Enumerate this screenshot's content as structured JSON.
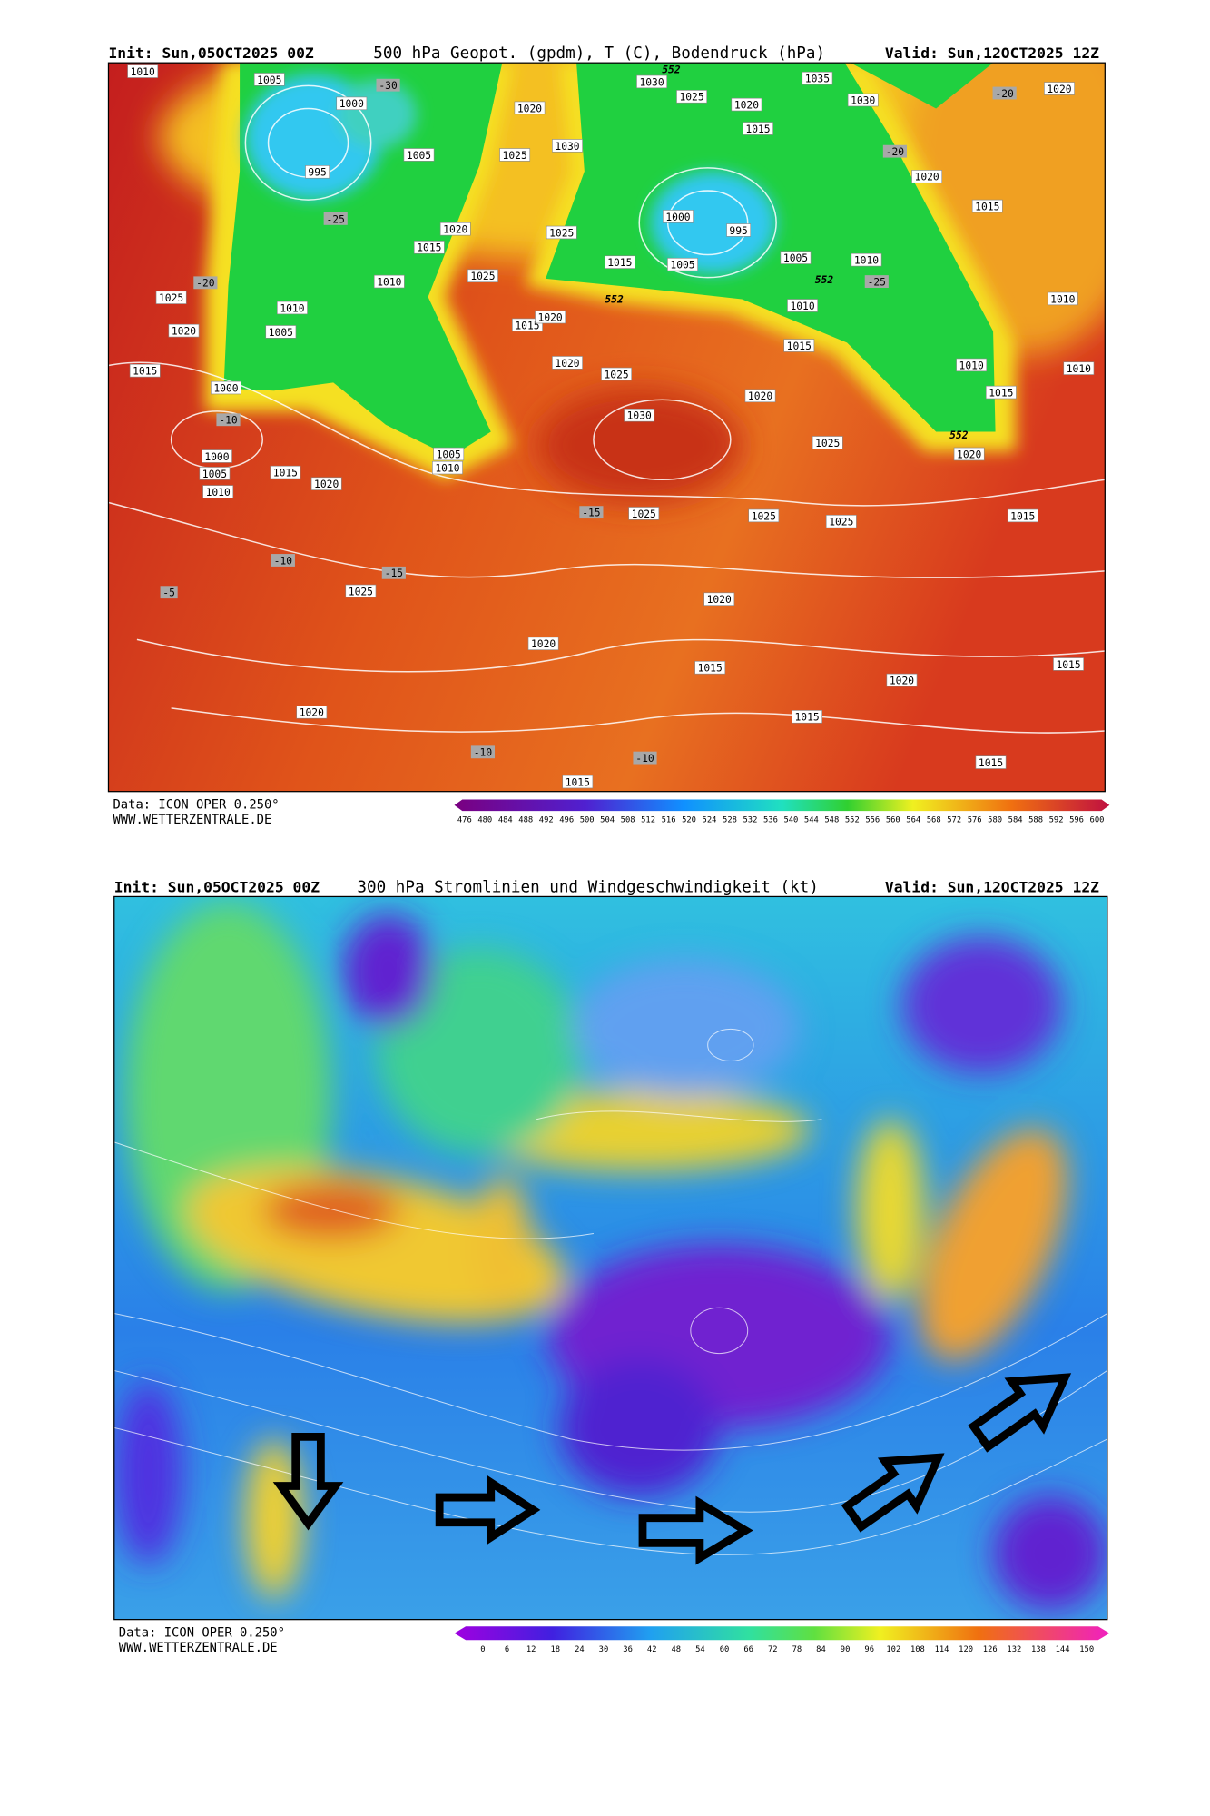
{
  "panels": [
    {
      "header": {
        "init": "Init: Sun,05OCT2025 00Z",
        "title": "500 hPa Geopot. (gpdm), T (C), Bodendruck (hPa)",
        "valid": "Valid: Sun,12OCT2025 12Z"
      },
      "footer": {
        "source": "Data: ICON OPER 0.250°",
        "site": "WWW.WETTERZENTRALE.DE"
      },
      "scale": [
        476,
        480,
        484,
        488,
        492,
        496,
        500,
        504,
        508,
        512,
        516,
        520,
        524,
        528,
        532,
        536,
        540,
        544,
        548,
        552,
        556,
        560,
        564,
        568,
        572,
        576,
        580,
        584,
        588,
        592,
        596,
        600
      ],
      "labels": [
        "1010",
        "1005",
        "1000",
        "995",
        "1005",
        "1020",
        "1025",
        "1030",
        "1030",
        "1025",
        "1020",
        "1015",
        "1035",
        "1030",
        "1020",
        "1020",
        "1015",
        "1000",
        "995",
        "1005",
        "1015",
        "1010",
        "1005",
        "1010",
        "1015",
        "1010",
        "1015",
        "1010",
        "1010",
        "1025",
        "1020",
        "1010",
        "1005",
        "1015",
        "1000",
        "1005",
        "1010",
        "1015",
        "1020",
        "1015",
        "1020",
        "1010",
        "1015",
        "1020",
        "1020",
        "1025",
        "1020",
        "1030",
        "1025",
        "1020",
        "1005",
        "1010",
        "1025",
        "1025",
        "1025",
        "1015",
        "1025",
        "1020",
        "1020",
        "1015",
        "1020",
        "1015",
        "1020",
        "1015",
        "1015",
        "1015",
        "1025",
        "1025",
        "1000",
        "-20",
        "-25",
        "-10",
        "-15",
        "-10",
        "-5",
        "-15",
        "-10",
        "-10",
        "-20",
        "-20",
        "-25",
        "-30",
        "552",
        "552",
        "552",
        "552"
      ]
    },
    {
      "header": {
        "init": "Init: Sun,05OCT2025 00Z",
        "title": "300 hPa Stromlinien und Windgeschwindigkeit (kt)",
        "valid": "Valid: Sun,12OCT2025 12Z"
      },
      "footer": {
        "source": "Data: ICON OPER 0.250°",
        "site": "WWW.WETTERZENTRALE.DE"
      },
      "scale": [
        0,
        6,
        12,
        18,
        24,
        30,
        36,
        42,
        48,
        54,
        60,
        66,
        72,
        78,
        84,
        90,
        96,
        102,
        108,
        114,
        120,
        126,
        132,
        138,
        144,
        150
      ]
    }
  ]
}
